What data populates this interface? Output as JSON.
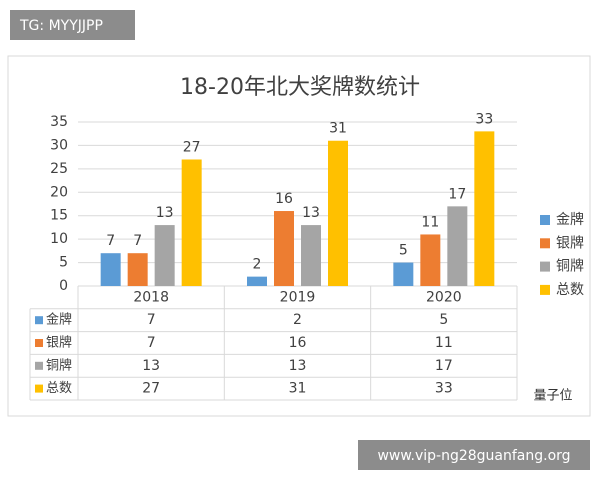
{
  "badge_top": "TG: MYYJJPP",
  "watermark": "量子位",
  "badge_bottom": "www.vip-ng28guanfang.org",
  "chart_data": {
    "type": "bar",
    "title": "18-20年北大奖牌数统计",
    "categories": [
      "2018",
      "2019",
      "2020"
    ],
    "series": [
      {
        "name": "金牌",
        "color": "#5b9bd5",
        "values": [
          7,
          2,
          5
        ]
      },
      {
        "name": "银牌",
        "color": "#ed7d31",
        "values": [
          7,
          16,
          11
        ]
      },
      {
        "name": "铜牌",
        "color": "#a5a5a5",
        "values": [
          13,
          13,
          17
        ]
      },
      {
        "name": "总数",
        "color": "#ffc000",
        "values": [
          27,
          31,
          33
        ]
      }
    ],
    "ylim": [
      0,
      35
    ],
    "yticks": [
      0,
      5,
      10,
      15,
      20,
      25,
      30,
      35
    ],
    "grid": true,
    "legend": "right",
    "data_table": true
  }
}
